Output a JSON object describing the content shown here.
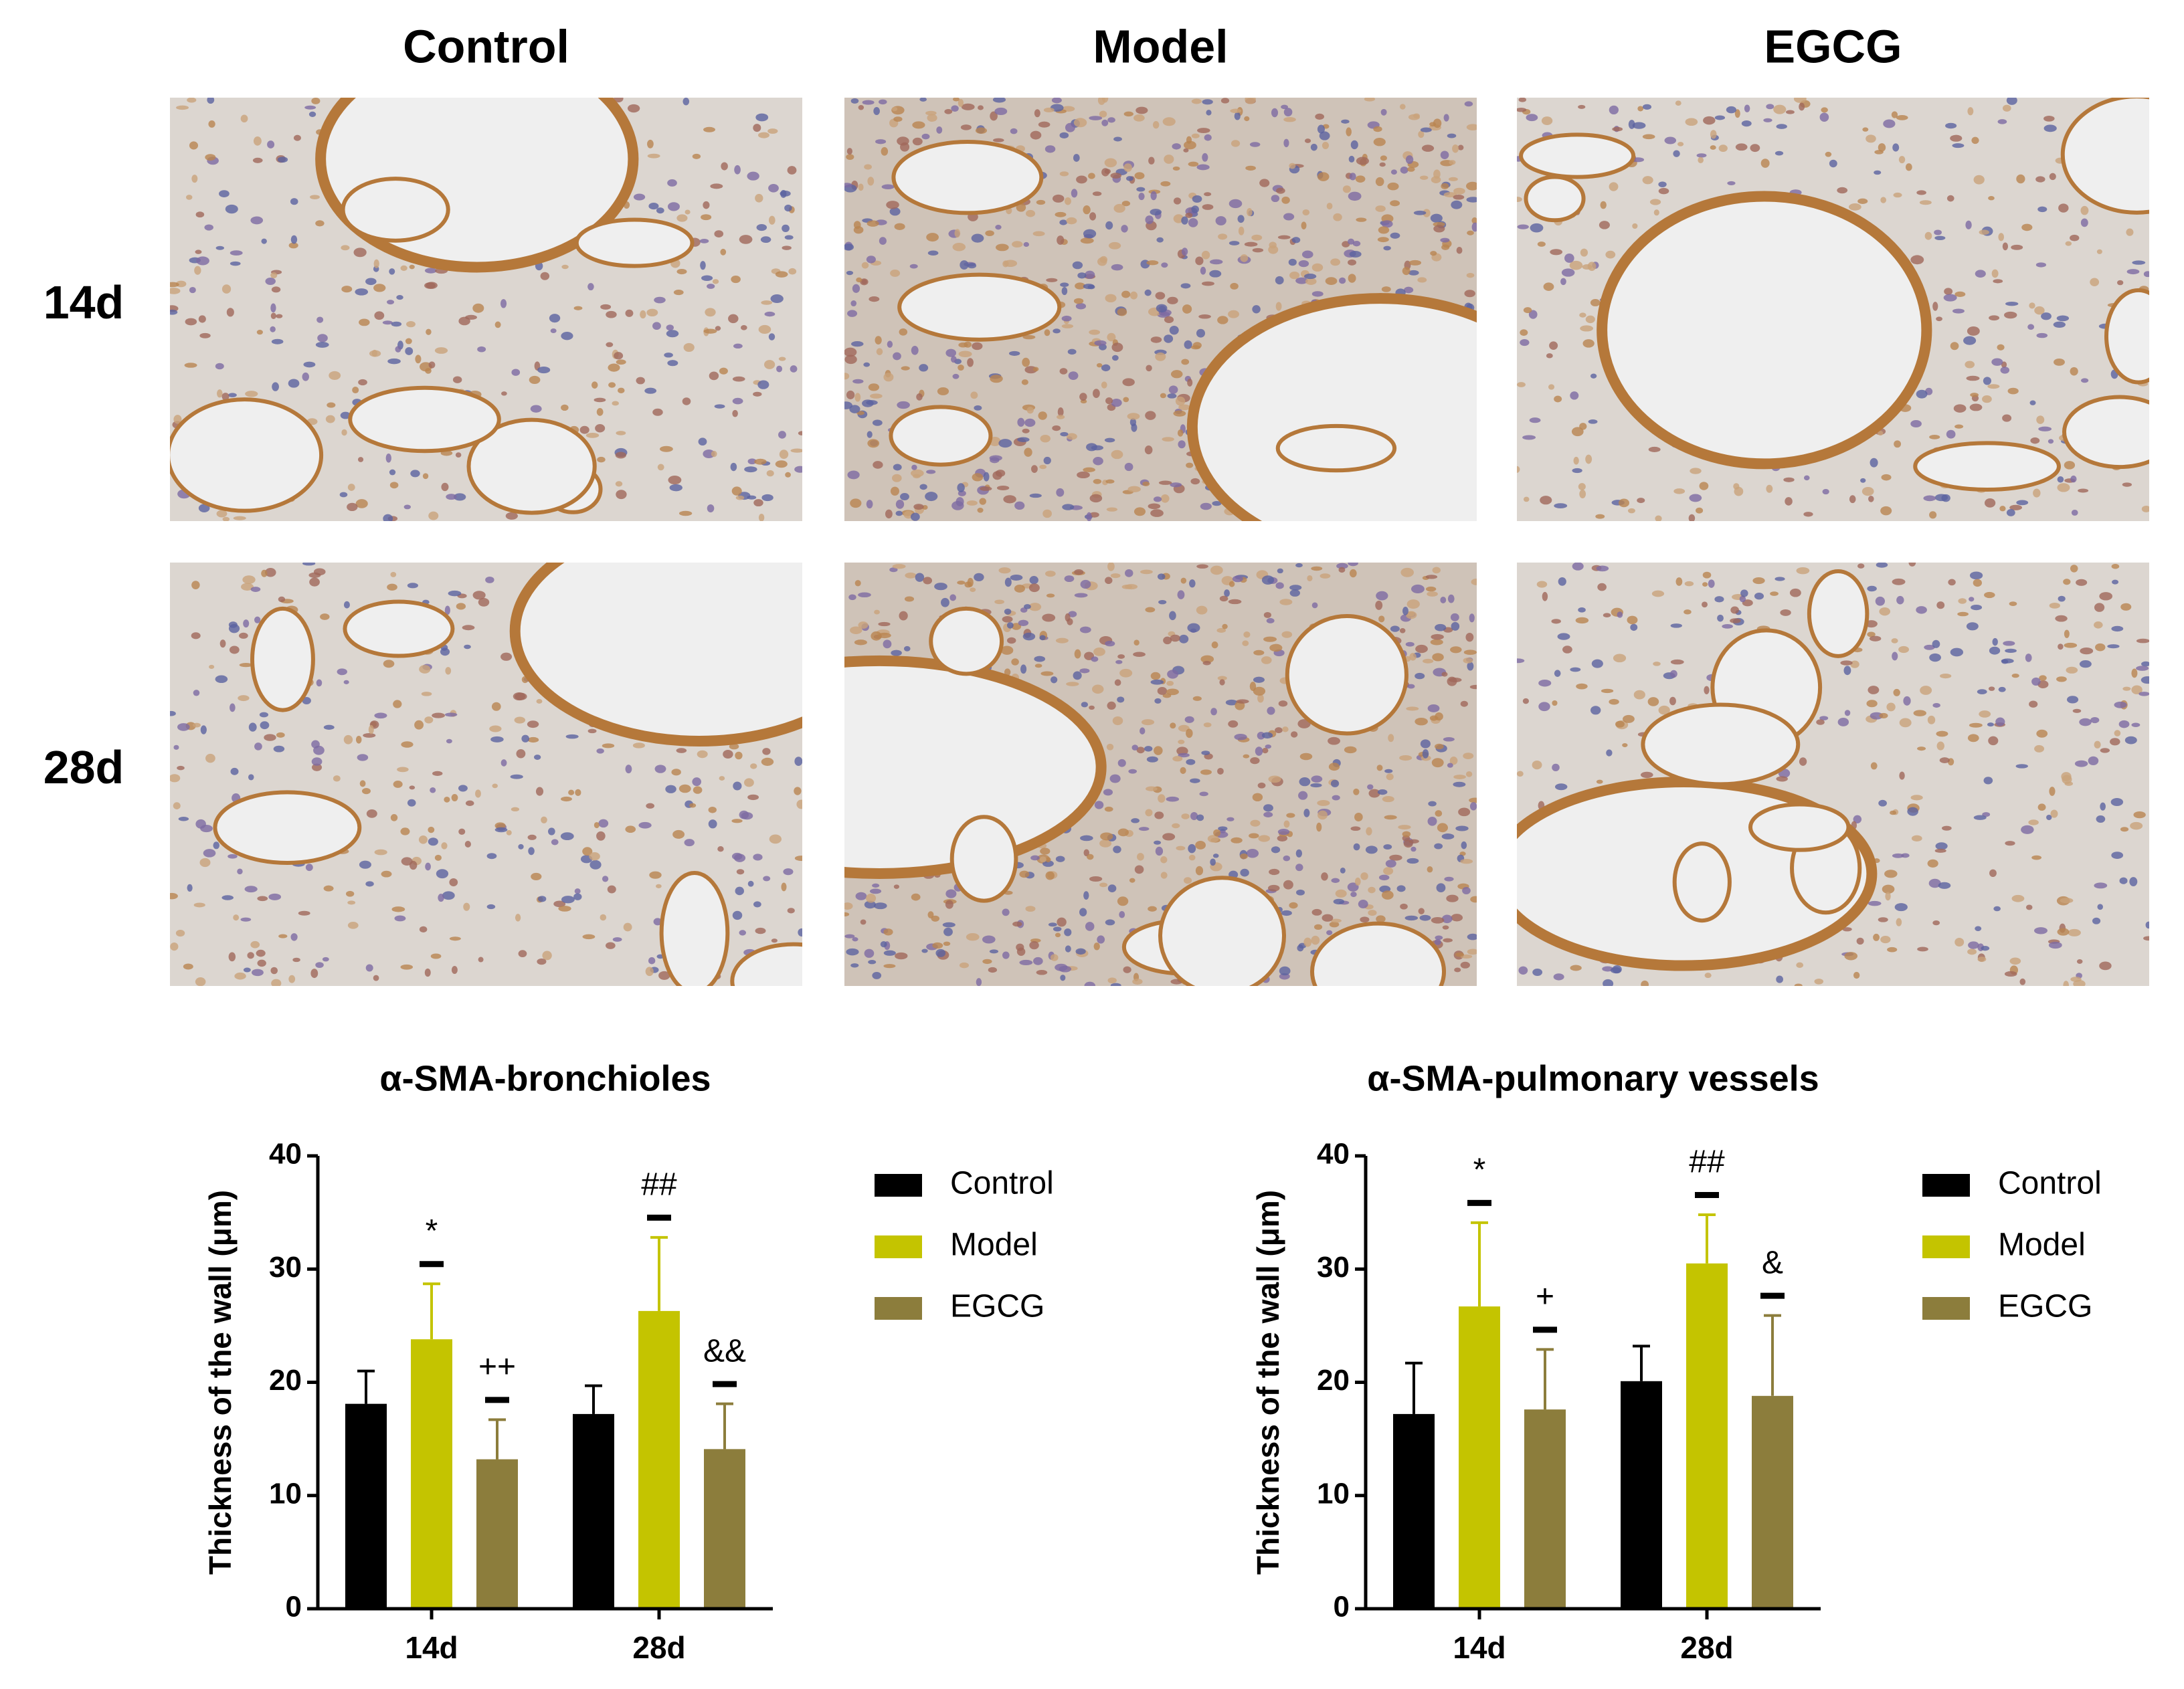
{
  "figure": {
    "columns": [
      "Control",
      "Model",
      "EGCG"
    ],
    "rows": [
      "14d",
      "28d"
    ]
  },
  "chart_data": [
    {
      "type": "bar",
      "title": "α-SMA-bronchioles",
      "ylabel": "Thickness of the wall (μm)",
      "categories": [
        "14d",
        "28d"
      ],
      "ylim": [
        0,
        40
      ],
      "yticks": [
        0,
        10,
        20,
        30,
        40
      ],
      "legend": "right",
      "series": [
        {
          "name": "Control",
          "color": "#000000",
          "values": [
            18.1,
            17.2
          ],
          "errors": [
            2.9,
            2.5
          ]
        },
        {
          "name": "Model",
          "color": "#c4c400",
          "values": [
            23.8,
            26.3
          ],
          "errors": [
            4.9,
            6.5
          ],
          "labels": [
            "*",
            "##"
          ]
        },
        {
          "name": "EGCG",
          "color": "#8c7d3c",
          "values": [
            13.2,
            14.1
          ],
          "errors": [
            3.5,
            4.0
          ],
          "labels": [
            "++",
            "&&"
          ]
        }
      ]
    },
    {
      "type": "bar",
      "title": "α-SMA-pulmonary vessels",
      "ylabel": "Thickness of the wall (μm)",
      "categories": [
        "14d",
        "28d"
      ],
      "ylim": [
        0,
        40
      ],
      "yticks": [
        0,
        10,
        20,
        30,
        40
      ],
      "legend": "right",
      "series": [
        {
          "name": "Control",
          "color": "#000000",
          "values": [
            17.2,
            20.1
          ],
          "errors": [
            4.5,
            3.1
          ]
        },
        {
          "name": "Model",
          "color": "#c4c400",
          "values": [
            26.7,
            30.5
          ],
          "errors": [
            7.4,
            4.3
          ],
          "labels": [
            "*",
            "##"
          ]
        },
        {
          "name": "EGCG",
          "color": "#8c7d3c",
          "values": [
            17.6,
            18.8
          ],
          "errors": [
            5.3,
            7.1
          ],
          "labels": [
            "+",
            "&"
          ]
        }
      ]
    }
  ]
}
